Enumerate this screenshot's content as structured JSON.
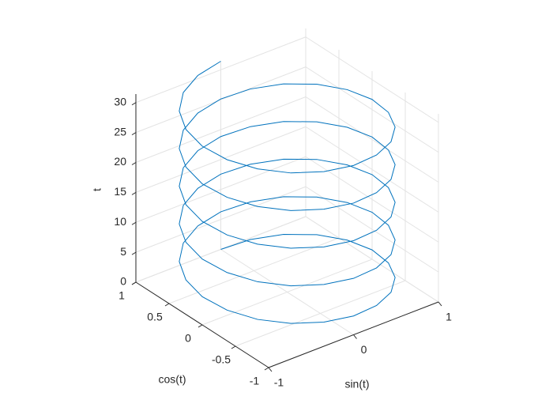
{
  "chart_data": {
    "type": "line3d",
    "xlabel": "sin(t)",
    "ylabel": "cos(t)",
    "zlabel": "t",
    "xlim": [
      -1,
      1
    ],
    "ylim": [
      -1,
      1
    ],
    "zlim": [
      0,
      31.42
    ],
    "xticks": [
      -1,
      0,
      1
    ],
    "yticks": [
      -1,
      -0.5,
      0,
      0.5,
      1
    ],
    "zticks": [
      0,
      5,
      10,
      15,
      20,
      25,
      30
    ],
    "grid": true,
    "series": [
      {
        "color": "#0072bd",
        "x": [
          0,
          0.31,
          0.59,
          0.81,
          0.95,
          1,
          0.95,
          0.81,
          0.59,
          0.31,
          0,
          -0.31,
          -0.59,
          -0.81,
          -0.95,
          -1,
          -0.95,
          -0.81,
          -0.59,
          -0.31,
          0,
          0.31,
          0.59,
          0.81,
          0.95,
          1,
          0.95,
          0.81,
          0.59,
          0.31,
          0,
          -0.31,
          -0.59,
          -0.81,
          -0.95,
          -1,
          -0.95,
          -0.81,
          -0.59,
          -0.31,
          0,
          0.31,
          0.59,
          0.81,
          0.95,
          1,
          0.95,
          0.81,
          0.59,
          0.31,
          0,
          -0.31,
          -0.59,
          -0.81,
          -0.95,
          -1,
          -0.95,
          -0.81,
          -0.59,
          -0.31,
          0,
          0.31,
          0.59,
          0.81,
          0.95,
          1,
          0.95,
          0.81,
          0.59,
          0.31,
          0,
          -0.31,
          -0.59,
          -0.81,
          -0.95,
          -1,
          -0.95,
          -0.81,
          -0.59,
          -0.31,
          0,
          0.31,
          0.59,
          0.81,
          0.95,
          1,
          0.95,
          0.81,
          0.59,
          0.31,
          0,
          -0.31,
          -0.59,
          -0.81,
          -0.95,
          -1,
          -0.95,
          -0.81,
          -0.59,
          -0.31,
          0
        ],
        "y": [
          1,
          0.95,
          0.81,
          0.59,
          0.31,
          0,
          -0.31,
          -0.59,
          -0.81,
          -0.95,
          -1,
          -0.95,
          -0.81,
          -0.59,
          -0.31,
          0,
          0.31,
          0.59,
          0.81,
          0.95,
          1,
          0.95,
          0.81,
          0.59,
          0.31,
          0,
          -0.31,
          -0.59,
          -0.81,
          -0.95,
          -1,
          -0.95,
          -0.81,
          -0.59,
          -0.31,
          0,
          0.31,
          0.59,
          0.81,
          0.95,
          1,
          0.95,
          0.81,
          0.59,
          0.31,
          0,
          -0.31,
          -0.59,
          -0.81,
          -0.95,
          -1,
          -0.95,
          -0.81,
          -0.59,
          -0.31,
          0,
          0.31,
          0.59,
          0.81,
          0.95,
          1,
          0.95,
          0.81,
          0.59,
          0.31,
          0,
          -0.31,
          -0.59,
          -0.81,
          -0.95,
          -1,
          -0.95,
          -0.81,
          -0.59,
          -0.31,
          0,
          0.31,
          0.59,
          0.81,
          0.95,
          1,
          0.95,
          0.81,
          0.59,
          0.31,
          0,
          -0.31,
          -0.59,
          -0.81,
          -0.95,
          -1,
          -0.95,
          -0.81,
          -0.59,
          -0.31,
          0,
          0.31,
          0.59,
          0.81,
          0.95,
          1
        ],
        "z": [
          0,
          0.31,
          0.63,
          0.94,
          1.26,
          1.57,
          1.88,
          2.2,
          2.51,
          2.83,
          3.14,
          3.46,
          3.77,
          4.08,
          4.4,
          4.71,
          5.03,
          5.34,
          5.65,
          5.97,
          6.28,
          6.6,
          6.91,
          7.23,
          7.54,
          7.85,
          8.17,
          8.48,
          8.8,
          9.11,
          9.42,
          9.74,
          10.05,
          10.37,
          10.68,
          11,
          11.31,
          11.62,
          11.94,
          12.25,
          12.57,
          12.88,
          13.19,
          13.51,
          13.82,
          14.14,
          14.45,
          14.77,
          15.08,
          15.39,
          15.71,
          16.02,
          16.34,
          16.65,
          16.96,
          17.28,
          17.59,
          17.91,
          18.22,
          18.54,
          18.85,
          19.16,
          19.48,
          19.79,
          20.11,
          20.42,
          20.73,
          21.05,
          21.36,
          21.68,
          21.99,
          22.31,
          22.62,
          22.93,
          23.25,
          23.56,
          23.88,
          24.19,
          24.5,
          24.82,
          25.13,
          25.45,
          25.76,
          26.08,
          26.39,
          26.7,
          27.02,
          27.33,
          27.65,
          27.96,
          28.27,
          28.59,
          28.9,
          29.22,
          29.53,
          29.85,
          30.16,
          30.47,
          30.79,
          31.1,
          31.42
        ]
      }
    ]
  }
}
